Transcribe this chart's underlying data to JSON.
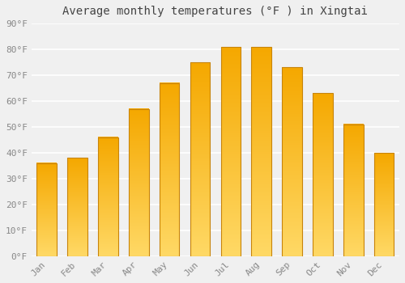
{
  "title": "Average monthly temperatures (°F ) in Xingtai",
  "months": [
    "Jan",
    "Feb",
    "Mar",
    "Apr",
    "May",
    "Jun",
    "Jul",
    "Aug",
    "Sep",
    "Oct",
    "Nov",
    "Dec"
  ],
  "values": [
    36,
    38,
    46,
    57,
    67,
    75,
    81,
    81,
    73,
    63,
    51,
    40
  ],
  "bar_color_top": "#F5A800",
  "bar_color_bottom": "#FFD966",
  "bar_edge_color": "#C8840A",
  "ylim": [
    0,
    90
  ],
  "yticks": [
    0,
    10,
    20,
    30,
    40,
    50,
    60,
    70,
    80,
    90
  ],
  "ytick_labels": [
    "0°F",
    "10°F",
    "20°F",
    "30°F",
    "40°F",
    "50°F",
    "60°F",
    "70°F",
    "80°F",
    "90°F"
  ],
  "bg_color": "#f0f0f0",
  "grid_color": "#ffffff",
  "title_fontsize": 10,
  "tick_fontsize": 8,
  "bar_width": 0.65
}
